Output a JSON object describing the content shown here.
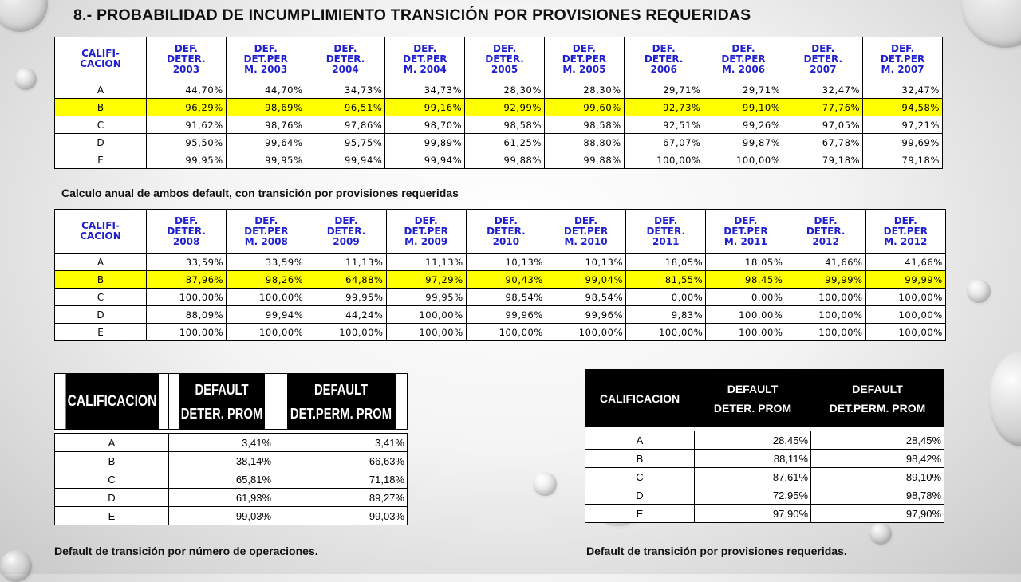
{
  "title": "8.- PROBABILIDAD DE INCUMPLIMIENTO TRANSICIÓN POR PROVISIONES REQUERIDAS",
  "subtitle": "Calculo anual de ambos default, con transición por provisiones requeridas",
  "colors": {
    "highlight": "#ffff00",
    "header_text": "#1f1fd0"
  },
  "table1": {
    "headers": [
      [
        "CALIFI-",
        "CACION"
      ],
      [
        "DEF.",
        "DETER.",
        "2003"
      ],
      [
        "DEF.",
        "DET.PER",
        "M. 2003"
      ],
      [
        "DEF.",
        "DETER.",
        "2004"
      ],
      [
        "DEF.",
        "DET.PER",
        "M. 2004"
      ],
      [
        "DEF.",
        "DETER.",
        "2005"
      ],
      [
        "DEF.",
        "DET.PER",
        "M. 2005"
      ],
      [
        "DEF.",
        "DETER.",
        "2006"
      ],
      [
        "DEF.",
        "DET.PER",
        "M. 2006"
      ],
      [
        "DEF.",
        "DETER.",
        "2007"
      ],
      [
        "DEF.",
        "DET.PER",
        "M. 2007"
      ]
    ],
    "rows": [
      [
        "A",
        "44,70%",
        "44,70%",
        "34,73%",
        "34,73%",
        "28,30%",
        "28,30%",
        "29,71%",
        "29,71%",
        "32,47%",
        "32,47%"
      ],
      [
        "B",
        "96,29%",
        "98,69%",
        "96,51%",
        "99,16%",
        "92,99%",
        "99,60%",
        "92,73%",
        "99,10%",
        "77,76%",
        "94,58%"
      ],
      [
        "C",
        "91,62%",
        "98,76%",
        "97,86%",
        "98,70%",
        "98,58%",
        "98,58%",
        "92,51%",
        "99,26%",
        "97,05%",
        "97,21%"
      ],
      [
        "D",
        "95,50%",
        "99,64%",
        "95,75%",
        "99,89%",
        "61,25%",
        "88,80%",
        "67,07%",
        "99,87%",
        "67,78%",
        "99,69%"
      ],
      [
        "E",
        "99,95%",
        "99,95%",
        "99,94%",
        "99,94%",
        "99,88%",
        "99,88%",
        "100,00%",
        "100,00%",
        "79,18%",
        "79,18%"
      ]
    ]
  },
  "table2": {
    "headers": [
      [
        "CALIFI-",
        "CACION"
      ],
      [
        "DEF.",
        "DETER.",
        "2008"
      ],
      [
        "DEF.",
        "DET.PER",
        "M. 2008"
      ],
      [
        "DEF.",
        "DETER.",
        "2009"
      ],
      [
        "DEF.",
        "DET.PER",
        "M. 2009"
      ],
      [
        "DEF.",
        "DETER.",
        "2010"
      ],
      [
        "DEF.",
        "DET.PER",
        "M. 2010"
      ],
      [
        "DEF.",
        "DETER.",
        "2011"
      ],
      [
        "DEF.",
        "DET.PER",
        "M. 2011"
      ],
      [
        "DEF.",
        "DETER.",
        "2012"
      ],
      [
        "DEF.",
        "DET.PER",
        "M. 2012"
      ]
    ],
    "rows": [
      [
        "A",
        "33,59%",
        "33,59%",
        "11,13%",
        "11,13%",
        "10,13%",
        "10,13%",
        "18,05%",
        "18,05%",
        "41,66%",
        "41,66%"
      ],
      [
        "B",
        "87,96%",
        "98,26%",
        "64,88%",
        "97,29%",
        "90,43%",
        "99,04%",
        "81,55%",
        "98,45%",
        "99,99%",
        "99,99%"
      ],
      [
        "C",
        "100,00%",
        "100,00%",
        "99,95%",
        "99,95%",
        "98,54%",
        "98,54%",
        "0,00%",
        "0,00%",
        "100,00%",
        "100,00%"
      ],
      [
        "D",
        "88,09%",
        "99,94%",
        "44,24%",
        "100,00%",
        "99,96%",
        "99,96%",
        "9,83%",
        "100,00%",
        "100,00%",
        "100,00%"
      ],
      [
        "E",
        "100,00%",
        "100,00%",
        "100,00%",
        "100,00%",
        "100,00%",
        "100,00%",
        "100,00%",
        "100,00%",
        "100,00%",
        "100,00%"
      ]
    ]
  },
  "table3": {
    "headers": [
      "CALIFICACION",
      "DEFAULT\nDETER. PROM",
      "DEFAULT\nDET.PERM. PROM"
    ],
    "rows": [
      [
        "A",
        "3,41%",
        "3,41%"
      ],
      [
        "B",
        "38,14%",
        "66,63%"
      ],
      [
        "C",
        "65,81%",
        "71,18%"
      ],
      [
        "D",
        "61,93%",
        "89,27%"
      ],
      [
        "E",
        "99,03%",
        "99,03%"
      ]
    ],
    "caption": "Default de transición por número de operaciones."
  },
  "table4": {
    "headers": [
      "CALIFICACION",
      "DEFAULT\nDETER. PROM",
      "DEFAULT\nDET.PERM. PROM"
    ],
    "rows": [
      [
        "A",
        "28,45%",
        "28,45%"
      ],
      [
        "B",
        "88,11%",
        "98,42%"
      ],
      [
        "C",
        "87,61%",
        "89,10%"
      ],
      [
        "D",
        "72,95%",
        "98,78%"
      ],
      [
        "E",
        "97,90%",
        "97,90%"
      ]
    ],
    "caption": "Default de transición por provisiones requeridas."
  }
}
